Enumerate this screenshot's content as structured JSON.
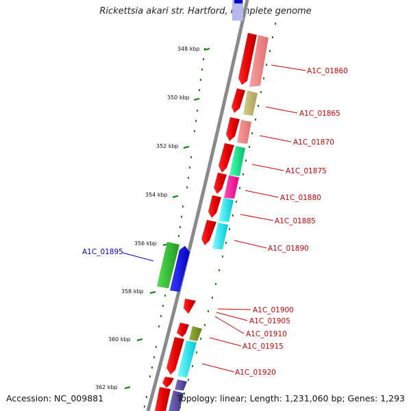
{
  "title": "Rickettsia akari str. Hartford, complete genome",
  "footer": {
    "accession": "Accession: NC_009881",
    "summary": "Topology: linear; Length: 1,231,060 bp; Genes: 1,293"
  },
  "scale_labels": [
    "348 kbp",
    "350 kbp",
    "352 kbp",
    "354 kbp",
    "356 kbp",
    "358 kbp",
    "360 kbp",
    "362 kbp"
  ],
  "genes": [
    {
      "label": "A1C_01860",
      "strand": "forward"
    },
    {
      "label": "A1C_01865",
      "strand": "forward"
    },
    {
      "label": "A1C_01870",
      "strand": "forward"
    },
    {
      "label": "A1C_01875",
      "strand": "forward"
    },
    {
      "label": "A1C_01880",
      "strand": "forward"
    },
    {
      "label": "A1C_01885",
      "strand": "forward"
    },
    {
      "label": "A1C_01890",
      "strand": "forward"
    },
    {
      "label": "A1C_01895",
      "strand": "reverse"
    },
    {
      "label": "A1C_01900",
      "strand": "forward"
    },
    {
      "label": "A1C_01905",
      "strand": "forward"
    },
    {
      "label": "A1C_01910",
      "strand": "forward"
    },
    {
      "label": "A1C_01915",
      "strand": "forward"
    },
    {
      "label": "A1C_01920",
      "strand": "forward"
    }
  ],
  "colors": {
    "backbone": "#8a8a8a",
    "tick": "#1a8a1a",
    "gene_red": "#ee0000",
    "forward_label": "#cc0000",
    "reverse_label": "#0000cc"
  }
}
